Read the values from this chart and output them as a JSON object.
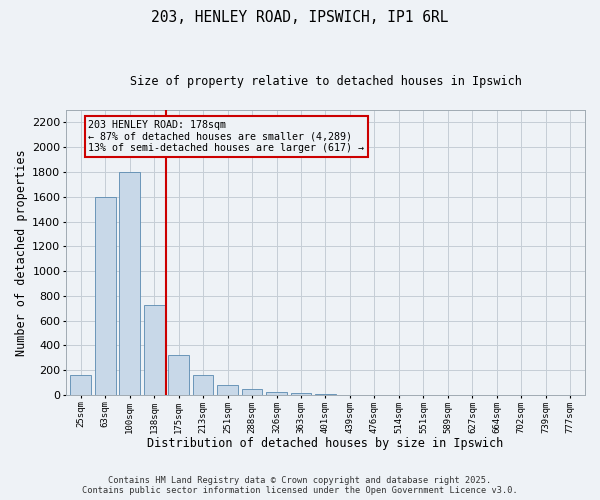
{
  "title1": "203, HENLEY ROAD, IPSWICH, IP1 6RL",
  "title2": "Size of property relative to detached houses in Ipswich",
  "xlabel": "Distribution of detached houses by size in Ipswich",
  "ylabel": "Number of detached properties",
  "categories": [
    "25sqm",
    "63sqm",
    "100sqm",
    "138sqm",
    "175sqm",
    "213sqm",
    "251sqm",
    "288sqm",
    "326sqm",
    "363sqm",
    "401sqm",
    "439sqm",
    "476sqm",
    "514sqm",
    "551sqm",
    "589sqm",
    "627sqm",
    "664sqm",
    "702sqm",
    "739sqm",
    "777sqm"
  ],
  "values": [
    160,
    1600,
    1800,
    725,
    320,
    160,
    80,
    50,
    25,
    15,
    5,
    2,
    1,
    0,
    0,
    0,
    0,
    0,
    0,
    0,
    0
  ],
  "bar_color": "#c8d8e8",
  "bar_edge_color": "#5a8ab0",
  "vline_index": 4,
  "vline_color": "#cc0000",
  "annotation_text": "203 HENLEY ROAD: 178sqm\n← 87% of detached houses are smaller (4,289)\n13% of semi-detached houses are larger (617) →",
  "annotation_box_color": "#cc0000",
  "background_color": "#eef2f6",
  "grid_color": "#c5cdd5",
  "footer1": "Contains HM Land Registry data © Crown copyright and database right 2025.",
  "footer2": "Contains public sector information licensed under the Open Government Licence v3.0.",
  "ylim": [
    0,
    2300
  ],
  "yticks": [
    0,
    200,
    400,
    600,
    800,
    1000,
    1200,
    1400,
    1600,
    1800,
    2000,
    2200
  ]
}
